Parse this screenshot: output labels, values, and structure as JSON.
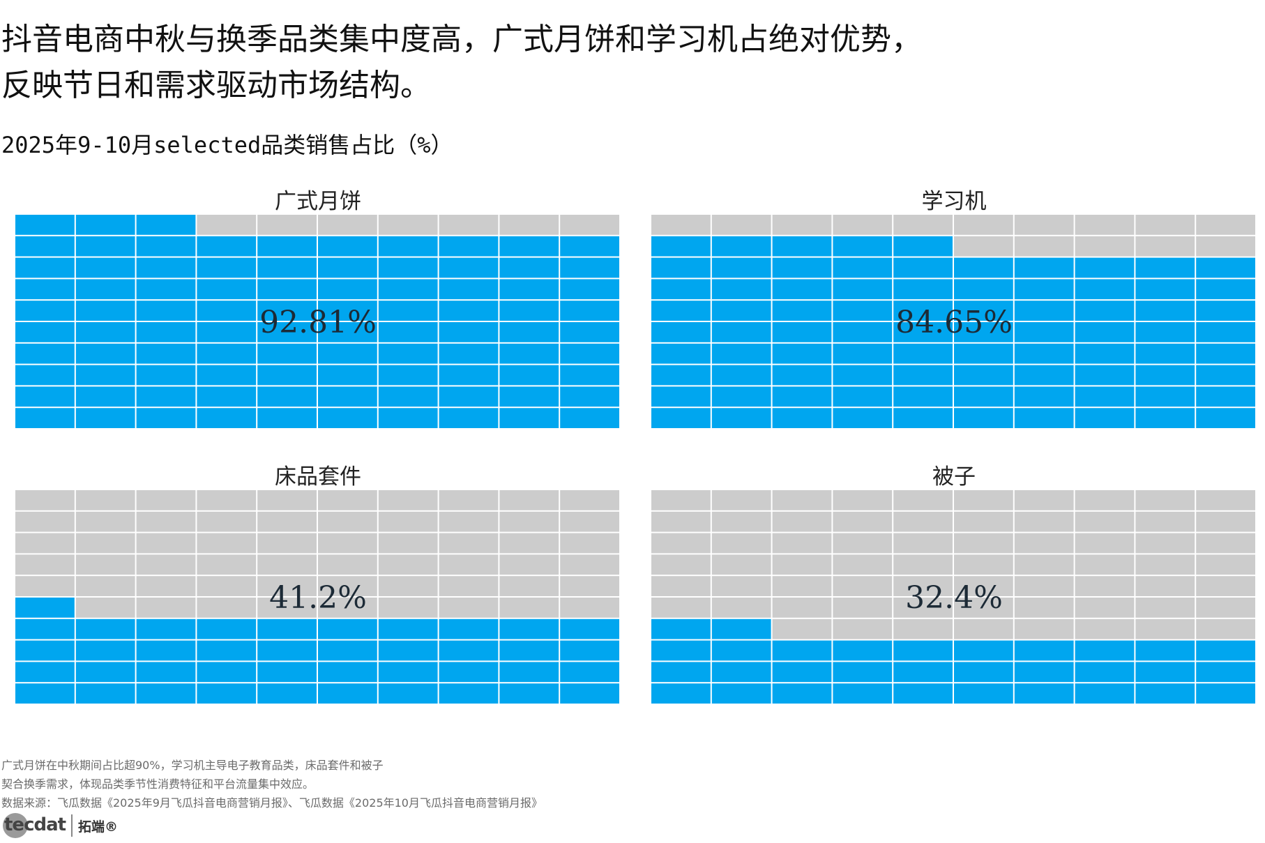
{
  "headline": {
    "line1": "抖音电商中秋与换季品类集中度高，广式月饼和学习机占绝对优势，",
    "line2": "反映节日和需求驱动市场结构。"
  },
  "subtitle": "2025年9-10月selected品类销售占比（%）",
  "colors": {
    "filled": "#00a6ef",
    "empty": "#cccccc",
    "cell_border": "#ffffff"
  },
  "chart_data": {
    "type": "waffle",
    "grid": "10x10",
    "categories": [
      "广式月饼",
      "学习机",
      "床品套件",
      "被子"
    ],
    "values": [
      92.81,
      84.65,
      41.2,
      32.4
    ],
    "labels": [
      "92.81%",
      "84.65%",
      "41.2%",
      "32.4%"
    ]
  },
  "notes": {
    "line1": "广式月饼在中秋期间占比超90%，学习机主导电子教育品类，床品套件和被子",
    "line2": "契合换季需求，体现品类季节性消费特征和平台流量集中效应。",
    "line3": "数据来源：飞瓜数据《2025年9月飞瓜抖音电商营销月报》、飞瓜数据《2025年10月飞瓜抖音电商营销月报》"
  },
  "logo": {
    "mark": "tecdat",
    "brand": "拓端®"
  }
}
